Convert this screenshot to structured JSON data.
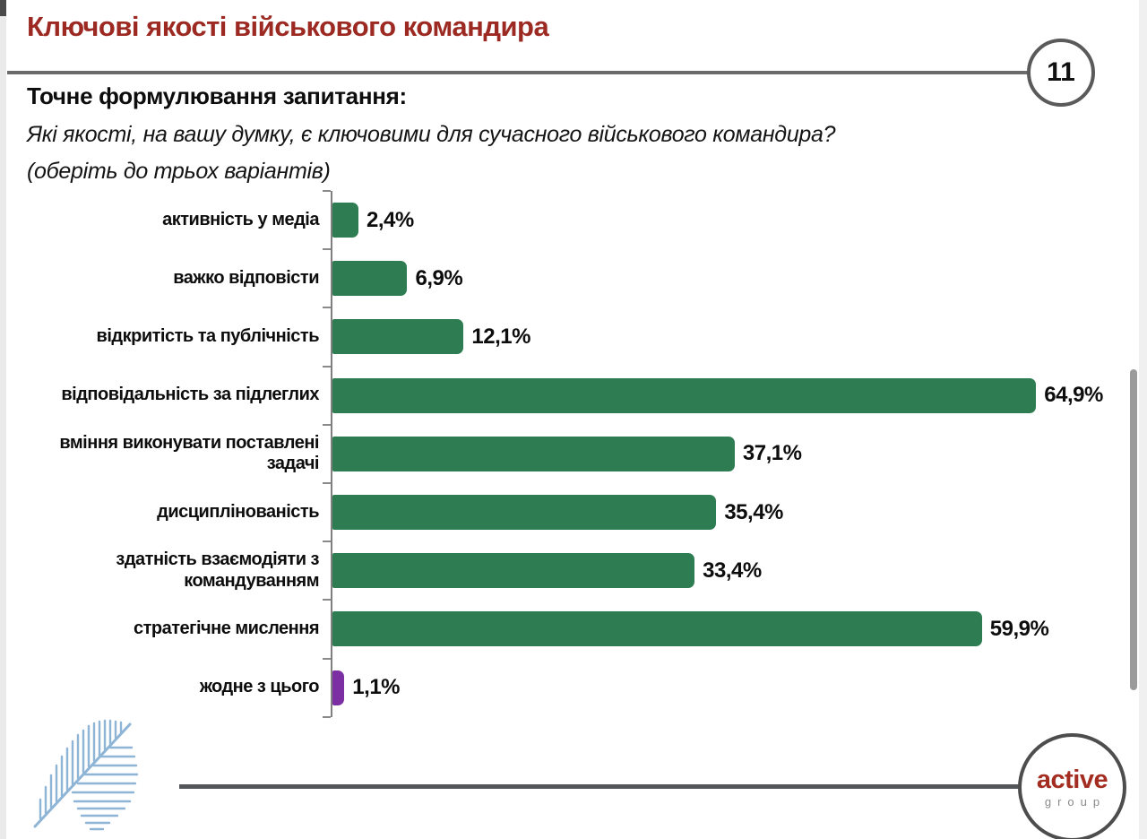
{
  "page": {
    "title": "Ключові якості військового командира",
    "page_number": "11"
  },
  "question": {
    "heading": "Точне формулювання запитання:",
    "line1": "Які якості, на вашу думку, є ключовими для сучасного військового командира?",
    "line2": "(оберіть до трьох варіантів)"
  },
  "chart_data": {
    "type": "bar",
    "orientation": "horizontal",
    "title": "",
    "xlabel": "",
    "ylabel": "",
    "xlim": [
      0,
      70
    ],
    "grid": false,
    "legend": "none",
    "categories": [
      "активність у медіа",
      "важко відповісти",
      "відкритість та публічність",
      "відповідальність за підлеглих",
      "вміння виконувати поставлені задачі",
      "дисциплінованість",
      "здатність взаємодіяти з командуванням",
      "стратегічне мислення",
      "жодне з цього"
    ],
    "values": [
      2.4,
      6.9,
      12.1,
      64.9,
      37.1,
      35.4,
      33.4,
      59.9,
      1.1
    ],
    "value_labels": [
      "2,4%",
      "6,9%",
      "12,1%",
      "64,9%",
      "37,1%",
      "35,4%",
      "33,4%",
      "59,9%",
      "1,1%"
    ],
    "bar_colors": [
      "#2e7d52",
      "#2e7d52",
      "#2e7d52",
      "#2e7d52",
      "#2e7d52",
      "#2e7d52",
      "#2e7d52",
      "#2e7d52",
      "#7b2fa2"
    ]
  },
  "logo": {
    "brand_top": "active",
    "brand_bottom": "group"
  },
  "colors": {
    "title_red": "#9c2a23",
    "bar_green": "#2e7d52",
    "bar_purple": "#7b2fa2",
    "rule_gray": "#6b6b6b",
    "leaf_blue": "#8fb5d6"
  }
}
